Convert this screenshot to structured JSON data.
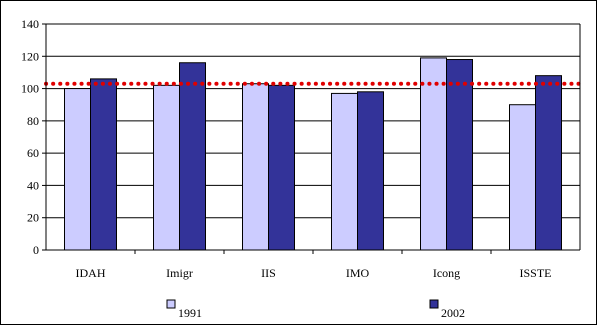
{
  "chart_data": {
    "type": "bar",
    "categories": [
      "IDAH",
      "Imigr",
      "IIS",
      "IMO",
      "Icong",
      "ISSTE"
    ],
    "series": [
      {
        "name": "1991",
        "values": [
          100,
          102,
          103,
          97,
          119,
          90
        ],
        "color": "#ccccff"
      },
      {
        "name": "2002",
        "values": [
          106,
          116,
          102,
          98,
          118,
          108
        ],
        "color": "#333399"
      }
    ],
    "reference_line": {
      "value": 103,
      "color": "#e00000",
      "style": "dotted"
    },
    "title": "",
    "xlabel": "",
    "ylabel": "",
    "ylim": [
      0,
      140
    ],
    "yticks": [
      0,
      20,
      40,
      60,
      80,
      100,
      120,
      140
    ],
    "grid": true,
    "legend_position": "bottom"
  }
}
